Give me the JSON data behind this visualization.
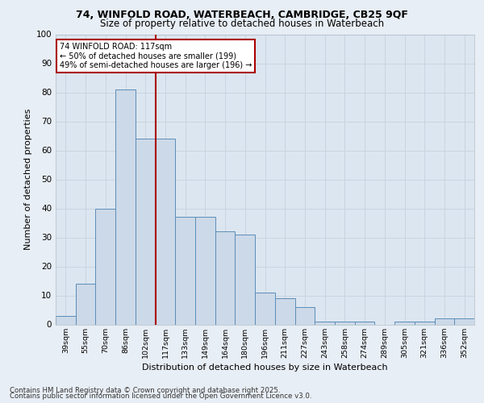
{
  "title_line1": "74, WINFOLD ROAD, WATERBEACH, CAMBRIDGE, CB25 9QF",
  "title_line2": "Size of property relative to detached houses in Waterbeach",
  "xlabel": "Distribution of detached houses by size in Waterbeach",
  "ylabel": "Number of detached properties",
  "categories": [
    "39sqm",
    "55sqm",
    "70sqm",
    "86sqm",
    "102sqm",
    "117sqm",
    "133sqm",
    "149sqm",
    "164sqm",
    "180sqm",
    "196sqm",
    "211sqm",
    "227sqm",
    "243sqm",
    "258sqm",
    "274sqm",
    "289sqm",
    "305sqm",
    "321sqm",
    "336sqm",
    "352sqm"
  ],
  "values": [
    3,
    14,
    40,
    81,
    64,
    64,
    37,
    37,
    32,
    31,
    11,
    9,
    6,
    1,
    1,
    1,
    0,
    1,
    1,
    2,
    2
  ],
  "bar_color": "#ccd9e8",
  "bar_edgecolor": "#5b8db8",
  "bar_linewidth": 0.7,
  "ref_line_index": 5,
  "ref_line_color": "#aa0000",
  "ref_line_label": "74 WINFOLD ROAD: 117sqm",
  "annotation_line1": "← 50% of detached houses are smaller (199)",
  "annotation_line2": "49% of semi-detached houses are larger (196) →",
  "ylim": [
    0,
    100
  ],
  "yticks": [
    0,
    10,
    20,
    30,
    40,
    50,
    60,
    70,
    80,
    90,
    100
  ],
  "bg_color": "#e8eef5",
  "plot_bg_color": "#dce6f0",
  "grid_color": "#c8d4e0",
  "footnote1": "Contains HM Land Registry data © Crown copyright and database right 2025.",
  "footnote2": "Contains public sector information licensed under the Open Government Licence v3.0."
}
